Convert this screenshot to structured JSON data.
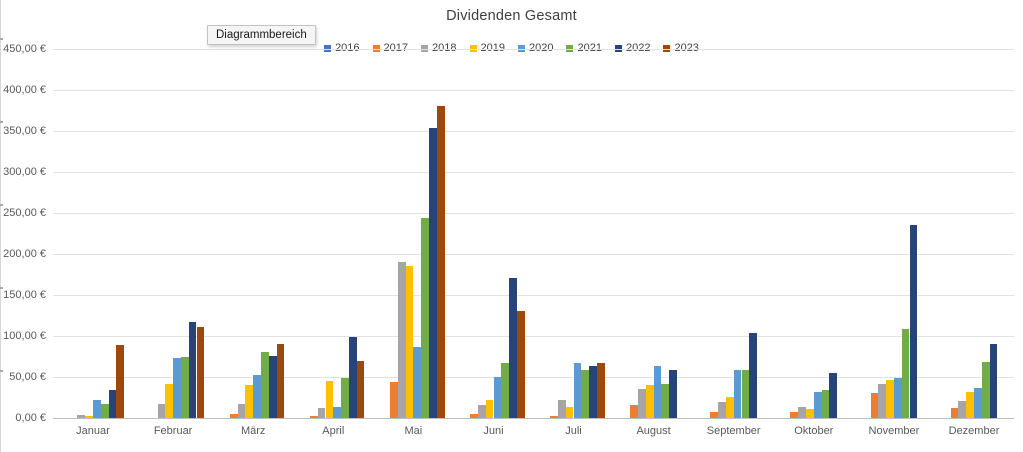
{
  "tooltip": {
    "text": "Diagrammbereich"
  },
  "chart_data": {
    "type": "bar",
    "title": "Dividenden Gesamt",
    "xlabel": "",
    "ylabel": "",
    "ylim": [
      0,
      450
    ],
    "y_step": 50,
    "grid": "horizontal",
    "legend_position": "top",
    "y_ticks": [
      "0,00 €",
      "50,00 €",
      "100,00 €",
      "150,00 €",
      "200,00 €",
      "250,00 €",
      "300,00 €",
      "350,00 €",
      "400,00 €",
      "450,00 €"
    ],
    "categories": [
      "Januar",
      "Februar",
      "März",
      "April",
      "Mai",
      "Juni",
      "Juli",
      "August",
      "September",
      "Oktober",
      "November",
      "Dezember"
    ],
    "series": [
      {
        "name": "2016",
        "color": "#4472C4",
        "values": [
          0,
          0,
          0,
          0,
          0,
          0,
          0,
          0,
          0,
          0,
          0,
          0
        ]
      },
      {
        "name": "2017",
        "color": "#ED7D31",
        "values": [
          0,
          0,
          5,
          2,
          44,
          5,
          3,
          16,
          7,
          7,
          30,
          12
        ]
      },
      {
        "name": "2018",
        "color": "#A5A5A5",
        "values": [
          4,
          17,
          17,
          12,
          190,
          16,
          22,
          35,
          19,
          13,
          42,
          21
        ]
      },
      {
        "name": "2019",
        "color": "#FFC000",
        "values": [
          2,
          41,
          40,
          45,
          186,
          22,
          13,
          40,
          26,
          11,
          47,
          32
        ]
      },
      {
        "name": "2020",
        "color": "#5B9BD5",
        "values": [
          22,
          73,
          52,
          13,
          87,
          50,
          67,
          63,
          58,
          32,
          49,
          37
        ]
      },
      {
        "name": "2021",
        "color": "#70AD47",
        "values": [
          17,
          74,
          80,
          49,
          244,
          67,
          59,
          41,
          59,
          34,
          108,
          68
        ]
      },
      {
        "name": "2022",
        "color": "#264478",
        "values": [
          34,
          117,
          76,
          99,
          354,
          171,
          64,
          59,
          104,
          55,
          236,
          90
        ]
      },
      {
        "name": "2023",
        "color": "#9E480E",
        "values": [
          89,
          111,
          90,
          70,
          381,
          131,
          67,
          0,
          0,
          0,
          0,
          0
        ]
      }
    ]
  }
}
